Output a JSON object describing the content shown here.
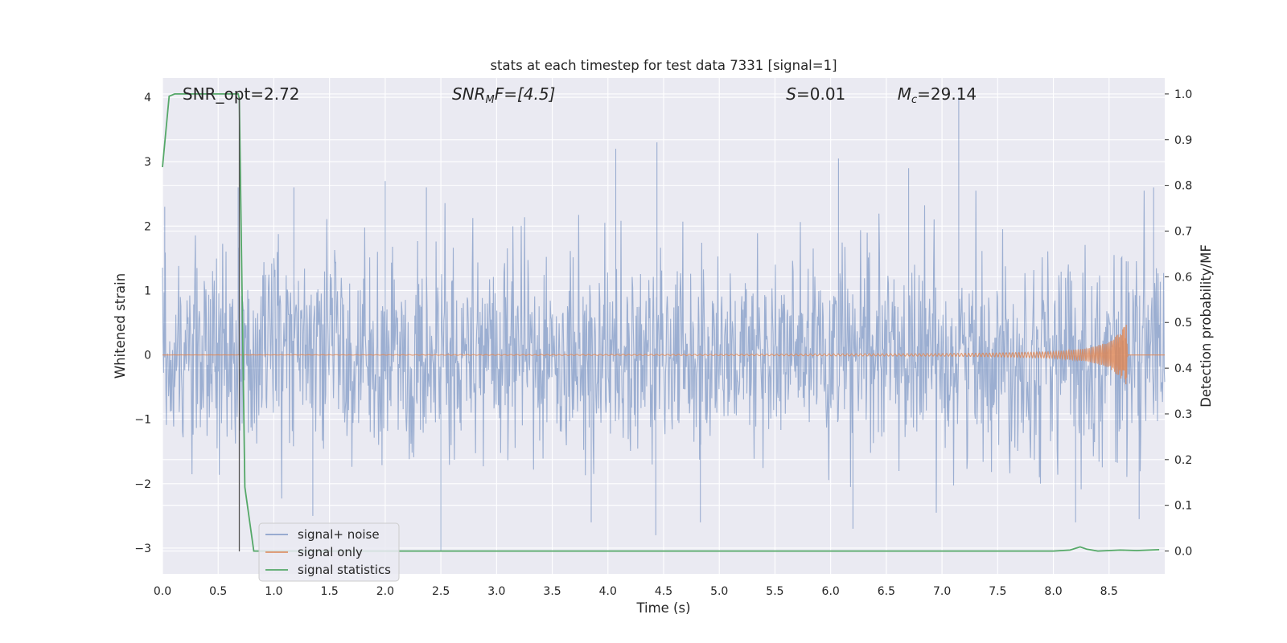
{
  "chart_data": {
    "type": "line",
    "title": "stats at each timestep for test data 7331 [signal=1]",
    "xlabel": "Time (s)",
    "ylabel": "Whitened strain",
    "y2label": "Detection probability/MF",
    "xlim": [
      0,
      9.0
    ],
    "ylim": [
      -3.4,
      4.3
    ],
    "y2lim": [
      -0.05,
      1.035
    ],
    "x_ticks": [
      "0.0",
      "0.5",
      "1.0",
      "1.5",
      "2.0",
      "2.5",
      "3.0",
      "3.5",
      "4.0",
      "4.5",
      "5.0",
      "5.5",
      "6.0",
      "6.5",
      "7.0",
      "7.5",
      "8.0",
      "8.5"
    ],
    "y_ticks": [
      "−3",
      "−2",
      "−1",
      "0",
      "1",
      "2",
      "3",
      "4"
    ],
    "y2_ticks": [
      "0.0",
      "0.1",
      "0.2",
      "0.3",
      "0.4",
      "0.5",
      "0.6",
      "0.7",
      "0.8",
      "0.9",
      "1.0"
    ],
    "grid": true,
    "legend_position": "lower-left",
    "colors": {
      "signal_noise": "#4c72b0",
      "signal_only": "#dd8452",
      "signal_statistics": "#55a868",
      "marker_line": "#555555",
      "background": "#eaeaf2",
      "grid": "#ffffff"
    },
    "series": [
      {
        "name": "signal+ noise",
        "axis": "left",
        "description_range": [
          -3.0,
          4.0
        ],
        "peaks": [
          {
            "x": 0.02,
            "y": 2.3
          },
          {
            "x": 0.68,
            "y": 2.6
          },
          {
            "x": 1.18,
            "y": 2.6
          },
          {
            "x": 2.0,
            "y": 2.7
          },
          {
            "x": 2.37,
            "y": 2.6
          },
          {
            "x": 4.07,
            "y": 3.2
          },
          {
            "x": 4.44,
            "y": 3.3
          },
          {
            "x": 6.07,
            "y": 3.05
          },
          {
            "x": 6.7,
            "y": 2.9
          },
          {
            "x": 7.15,
            "y": 4.0
          },
          {
            "x": 8.9,
            "y": 2.6
          },
          {
            "x": 2.5,
            "y": -3.05
          },
          {
            "x": 3.85,
            "y": -2.6
          },
          {
            "x": 4.43,
            "y": -2.8
          },
          {
            "x": 6.2,
            "y": -2.7
          },
          {
            "x": 8.2,
            "y": -2.6
          },
          {
            "x": 8.77,
            "y": -2.55
          },
          {
            "x": 1.35,
            "y": -2.5
          },
          {
            "x": 4.83,
            "y": -2.6
          }
        ]
      },
      {
        "name": "signal only",
        "axis": "left",
        "x": [
          0.0,
          5.0,
          6.0,
          7.0,
          7.5,
          8.0,
          8.3,
          8.5,
          8.6,
          8.66,
          8.67,
          9.0
        ],
        "amplitude": [
          0.0,
          0.01,
          0.015,
          0.02,
          0.03,
          0.05,
          0.1,
          0.2,
          0.35,
          0.5,
          0.0,
          0.0
        ]
      },
      {
        "name": "signal statistics",
        "axis": "right",
        "x": [
          0.0,
          0.06,
          0.11,
          0.3,
          0.5,
          0.68,
          0.69,
          0.74,
          0.82,
          1.0,
          2.0,
          4.0,
          6.0,
          8.0,
          8.15,
          8.24,
          8.3,
          8.4,
          8.6,
          8.75,
          8.95
        ],
        "y": [
          0.84,
          0.995,
          1.0,
          1.0,
          1.0,
          1.0,
          0.99,
          0.14,
          0.0,
          0.0,
          0.0,
          0.0,
          0.0,
          0.0,
          0.002,
          0.009,
          0.004,
          0.0,
          0.002,
          0.001,
          0.003
        ]
      }
    ],
    "marker_line_x": 0.69,
    "annotations": [
      {
        "text": "SNR_opt=2.72",
        "x": 0.18
      },
      {
        "text_main": "SNR",
        "text_sub": "M",
        "text_tail": "F=[4.5]",
        "x": 2.6
      },
      {
        "text_main": "S",
        "text_tail": "=0.01",
        "x": 5.6
      },
      {
        "text_main": "M",
        "text_sub": "c",
        "text_tail": "=29.14",
        "x": 6.6
      }
    ]
  },
  "legend": {
    "items": [
      "signal+ noise",
      "signal only",
      "signal statistics"
    ]
  }
}
